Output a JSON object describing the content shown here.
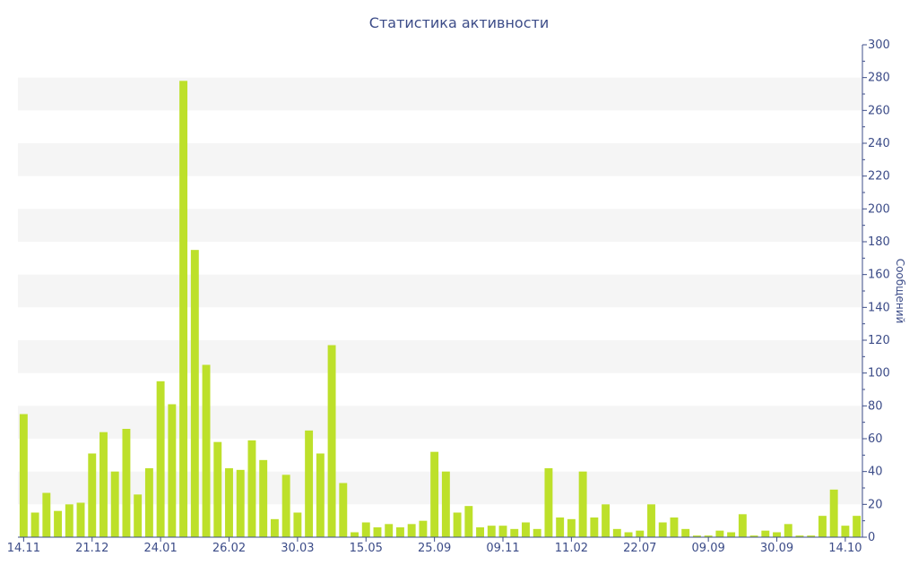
{
  "chart_data": {
    "type": "bar",
    "title": "Статистика активности",
    "xlabel": "",
    "ylabel": "Сообщений",
    "ylim": [
      0,
      300
    ],
    "y_ticks": [
      0,
      20,
      40,
      60,
      80,
      100,
      120,
      140,
      160,
      180,
      200,
      220,
      240,
      260,
      280,
      300
    ],
    "x_tick_labels": [
      {
        "label": "14.11",
        "index": 0
      },
      {
        "label": "21.12",
        "index": 6
      },
      {
        "label": "24.01",
        "index": 12
      },
      {
        "label": "26.02",
        "index": 18
      },
      {
        "label": "30.03",
        "index": 24
      },
      {
        "label": "15.05",
        "index": 30
      },
      {
        "label": "25.09",
        "index": 36
      },
      {
        "label": "09.11",
        "index": 42
      },
      {
        "label": "11.02",
        "index": 48
      },
      {
        "label": "22.07",
        "index": 54
      },
      {
        "label": "09.09",
        "index": 60
      },
      {
        "label": "30.09",
        "index": 66
      },
      {
        "label": "14.10",
        "index": 72
      }
    ],
    "values": [
      75,
      15,
      27,
      16,
      20,
      21,
      51,
      64,
      40,
      66,
      26,
      42,
      95,
      81,
      278,
      175,
      105,
      58,
      42,
      41,
      59,
      47,
      11,
      38,
      15,
      65,
      51,
      117,
      33,
      3,
      9,
      6,
      8,
      6,
      8,
      10,
      52,
      40,
      15,
      19,
      6,
      7,
      7,
      5,
      9,
      5,
      42,
      12,
      11,
      40,
      12,
      20,
      5,
      3,
      4,
      20,
      9,
      12,
      5,
      1,
      1,
      4,
      3,
      14,
      1,
      4,
      3,
      8,
      1,
      1,
      13,
      29,
      7,
      13
    ],
    "grid": true,
    "colors": {
      "bar": "#bde02a",
      "band": "#f5f5f5",
      "text": "#3c4c88"
    }
  }
}
